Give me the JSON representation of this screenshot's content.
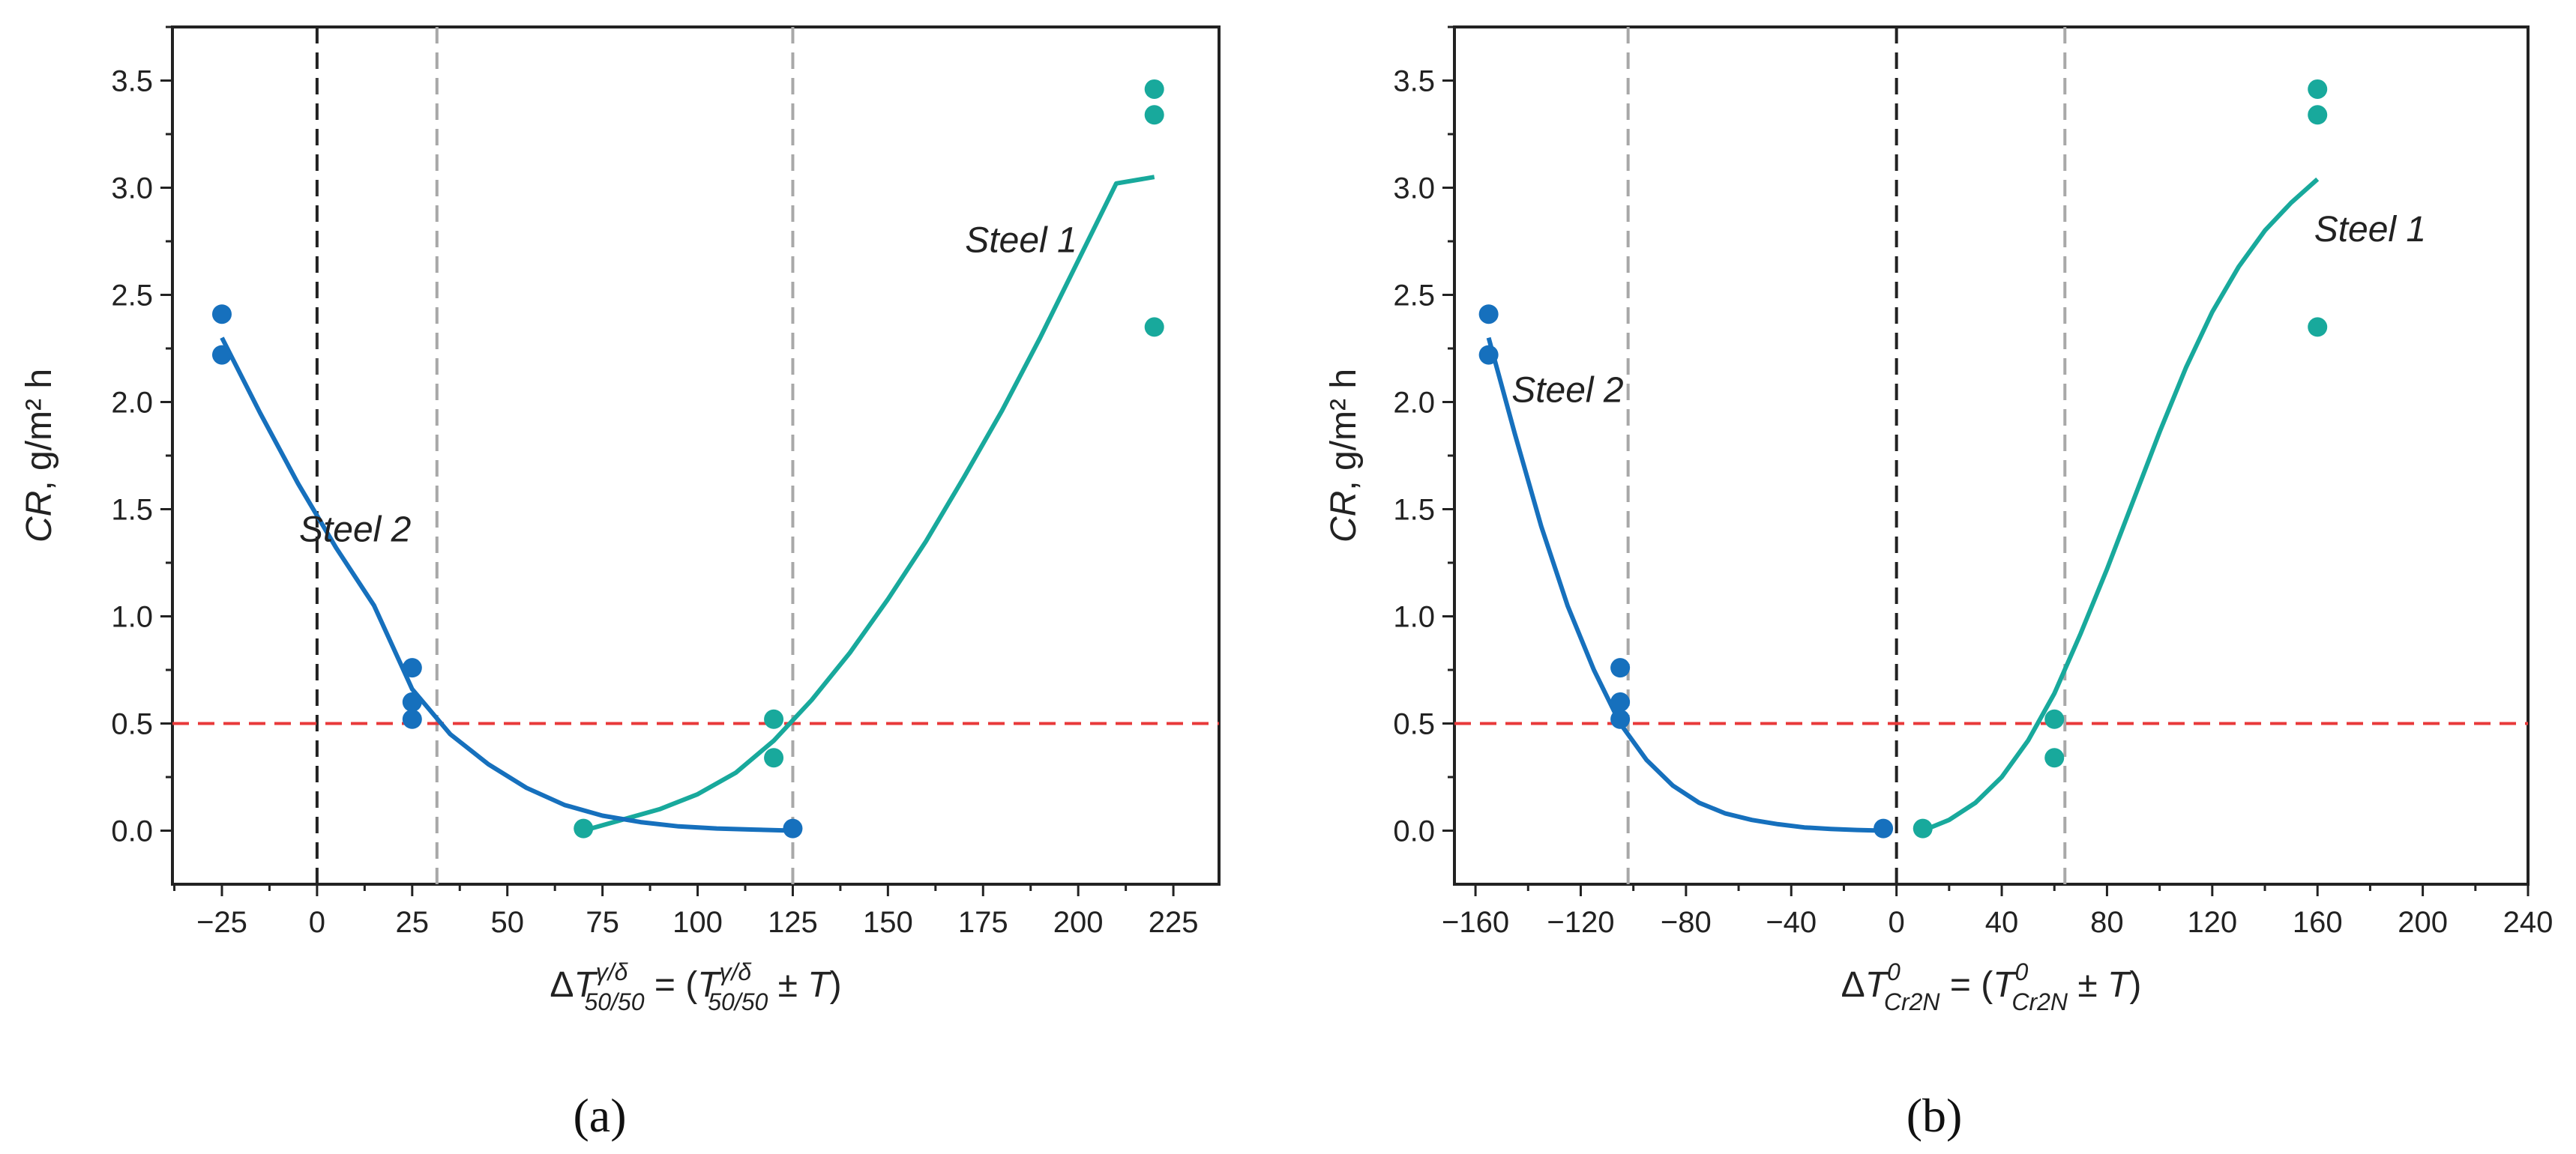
{
  "colors": {
    "steel1": "#18a99c",
    "steel2": "#1670bd",
    "threshold": "#e8393a",
    "zero_line": "#222222",
    "marker_line": "#a8a8a8",
    "axis": "#222222"
  },
  "chart_data": [
    {
      "type": "scatter",
      "panel_label": "(a)",
      "ylabel": {
        "main": "CR",
        "rest": ", g/m² h"
      },
      "xlabel": {
        "pre": "ΔT",
        "sup": "γ/δ",
        "sub": "50/50",
        "mid": " = (T",
        "sup2": "γ/δ",
        "sub2": "50/50",
        "post": " ± T)"
      },
      "xlim": [
        -38,
        237
      ],
      "ylim": [
        -0.25,
        3.75
      ],
      "x_ticks": [
        -25,
        0,
        25,
        50,
        75,
        100,
        125,
        150,
        175,
        200,
        225
      ],
      "x_tick_labels": [
        "−25",
        "0",
        "25",
        "50",
        "75",
        "100",
        "125",
        "150",
        "175",
        "200",
        "225"
      ],
      "y_ticks": [
        0.0,
        0.5,
        1.0,
        1.5,
        2.0,
        2.5,
        3.0,
        3.5
      ],
      "y_tick_labels": [
        "0.0",
        "0.5",
        "1.0",
        "1.5",
        "2.0",
        "2.5",
        "3.0",
        "3.5"
      ],
      "threshold_y": 0.5,
      "zero_line_x": 0,
      "marker_lines_x": [
        31.5,
        125
      ],
      "series": [
        {
          "name": "Steel 1",
          "points": [
            [
              70,
              0.01
            ],
            [
              120,
              0.52
            ],
            [
              120,
              0.34
            ],
            [
              220,
              3.46
            ],
            [
              220,
              3.34
            ],
            [
              220,
              2.35
            ]
          ],
          "fit": [
            [
              70,
              0.0
            ],
            [
              80,
              0.05
            ],
            [
              90,
              0.1
            ],
            [
              100,
              0.17
            ],
            [
              110,
              0.27
            ],
            [
              120,
              0.42
            ],
            [
              130,
              0.61
            ],
            [
              140,
              0.83
            ],
            [
              150,
              1.08
            ],
            [
              160,
              1.35
            ],
            [
              170,
              1.65
            ],
            [
              180,
              1.96
            ],
            [
              190,
              2.3
            ],
            [
              200,
              2.66
            ],
            [
              210,
              3.02
            ],
            [
              220,
              3.05
            ]
          ],
          "label_at": [
            185,
            2.7
          ]
        },
        {
          "name": "Steel 2",
          "points": [
            [
              -25,
              2.41
            ],
            [
              -25,
              2.22
            ],
            [
              25,
              0.76
            ],
            [
              25,
              0.6
            ],
            [
              25,
              0.52
            ],
            [
              125,
              0.01
            ]
          ],
          "fit": [
            [
              -25,
              2.3
            ],
            [
              -15,
              1.95
            ],
            [
              -5,
              1.62
            ],
            [
              5,
              1.32
            ],
            [
              15,
              1.05
            ],
            [
              25,
              0.66
            ],
            [
              35,
              0.45
            ],
            [
              45,
              0.31
            ],
            [
              55,
              0.2
            ],
            [
              65,
              0.12
            ],
            [
              75,
              0.07
            ],
            [
              85,
              0.04
            ],
            [
              95,
              0.02
            ],
            [
              105,
              0.01
            ],
            [
              115,
              0.005
            ],
            [
              125,
              0.0
            ]
          ],
          "label_at": [
            10,
            1.35
          ]
        }
      ]
    },
    {
      "type": "scatter",
      "panel_label": "(b)",
      "ylabel": {
        "main": "CR",
        "rest": ", g/m² h"
      },
      "xlabel": {
        "pre": "ΔT",
        "sup": "0",
        "sub": "Cr2N",
        "mid": " = (T",
        "sup2": "0",
        "sub2": "Cr2N",
        "post": " ± T)"
      },
      "xlim": [
        -168,
        240
      ],
      "ylim": [
        -0.25,
        3.75
      ],
      "x_ticks": [
        -160,
        -120,
        -80,
        -40,
        0,
        40,
        80,
        120,
        160,
        200,
        240
      ],
      "x_tick_labels": [
        "−160",
        "−120",
        "−80",
        "−40",
        "0",
        "40",
        "80",
        "120",
        "160",
        "200",
        "240"
      ],
      "y_ticks": [
        0.0,
        0.5,
        1.0,
        1.5,
        2.0,
        2.5,
        3.0,
        3.5
      ],
      "y_tick_labels": [
        "0.0",
        "0.5",
        "1.0",
        "1.5",
        "2.0",
        "2.5",
        "3.0",
        "3.5"
      ],
      "threshold_y": 0.5,
      "zero_line_x": 0,
      "marker_lines_x": [
        -102,
        64
      ],
      "series": [
        {
          "name": "Steel 1",
          "points": [
            [
              10,
              0.01
            ],
            [
              60,
              0.52
            ],
            [
              60,
              0.34
            ],
            [
              160,
              3.46
            ],
            [
              160,
              3.34
            ],
            [
              160,
              2.35
            ]
          ],
          "fit": [
            [
              10,
              0.0
            ],
            [
              20,
              0.05
            ],
            [
              30,
              0.13
            ],
            [
              40,
              0.25
            ],
            [
              50,
              0.42
            ],
            [
              60,
              0.64
            ],
            [
              70,
              0.92
            ],
            [
              80,
              1.22
            ],
            [
              90,
              1.54
            ],
            [
              100,
              1.86
            ],
            [
              110,
              2.16
            ],
            [
              120,
              2.42
            ],
            [
              130,
              2.63
            ],
            [
              140,
              2.8
            ],
            [
              150,
              2.93
            ],
            [
              160,
              3.04
            ]
          ],
          "label_at": [
            180,
            2.75
          ]
        },
        {
          "name": "Steel 2",
          "points": [
            [
              -155,
              2.41
            ],
            [
              -155,
              2.22
            ],
            [
              -105,
              0.76
            ],
            [
              -105,
              0.6
            ],
            [
              -105,
              0.52
            ],
            [
              -5,
              0.01
            ]
          ],
          "fit": [
            [
              -155,
              2.3
            ],
            [
              -145,
              1.85
            ],
            [
              -135,
              1.42
            ],
            [
              -125,
              1.05
            ],
            [
              -115,
              0.75
            ],
            [
              -105,
              0.5
            ],
            [
              -95,
              0.33
            ],
            [
              -85,
              0.21
            ],
            [
              -75,
              0.13
            ],
            [
              -65,
              0.08
            ],
            [
              -55,
              0.05
            ],
            [
              -45,
              0.03
            ],
            [
              -35,
              0.015
            ],
            [
              -25,
              0.008
            ],
            [
              -15,
              0.003
            ],
            [
              -5,
              0.0
            ]
          ],
          "label_at": [
            -125,
            2.0
          ]
        }
      ]
    }
  ]
}
